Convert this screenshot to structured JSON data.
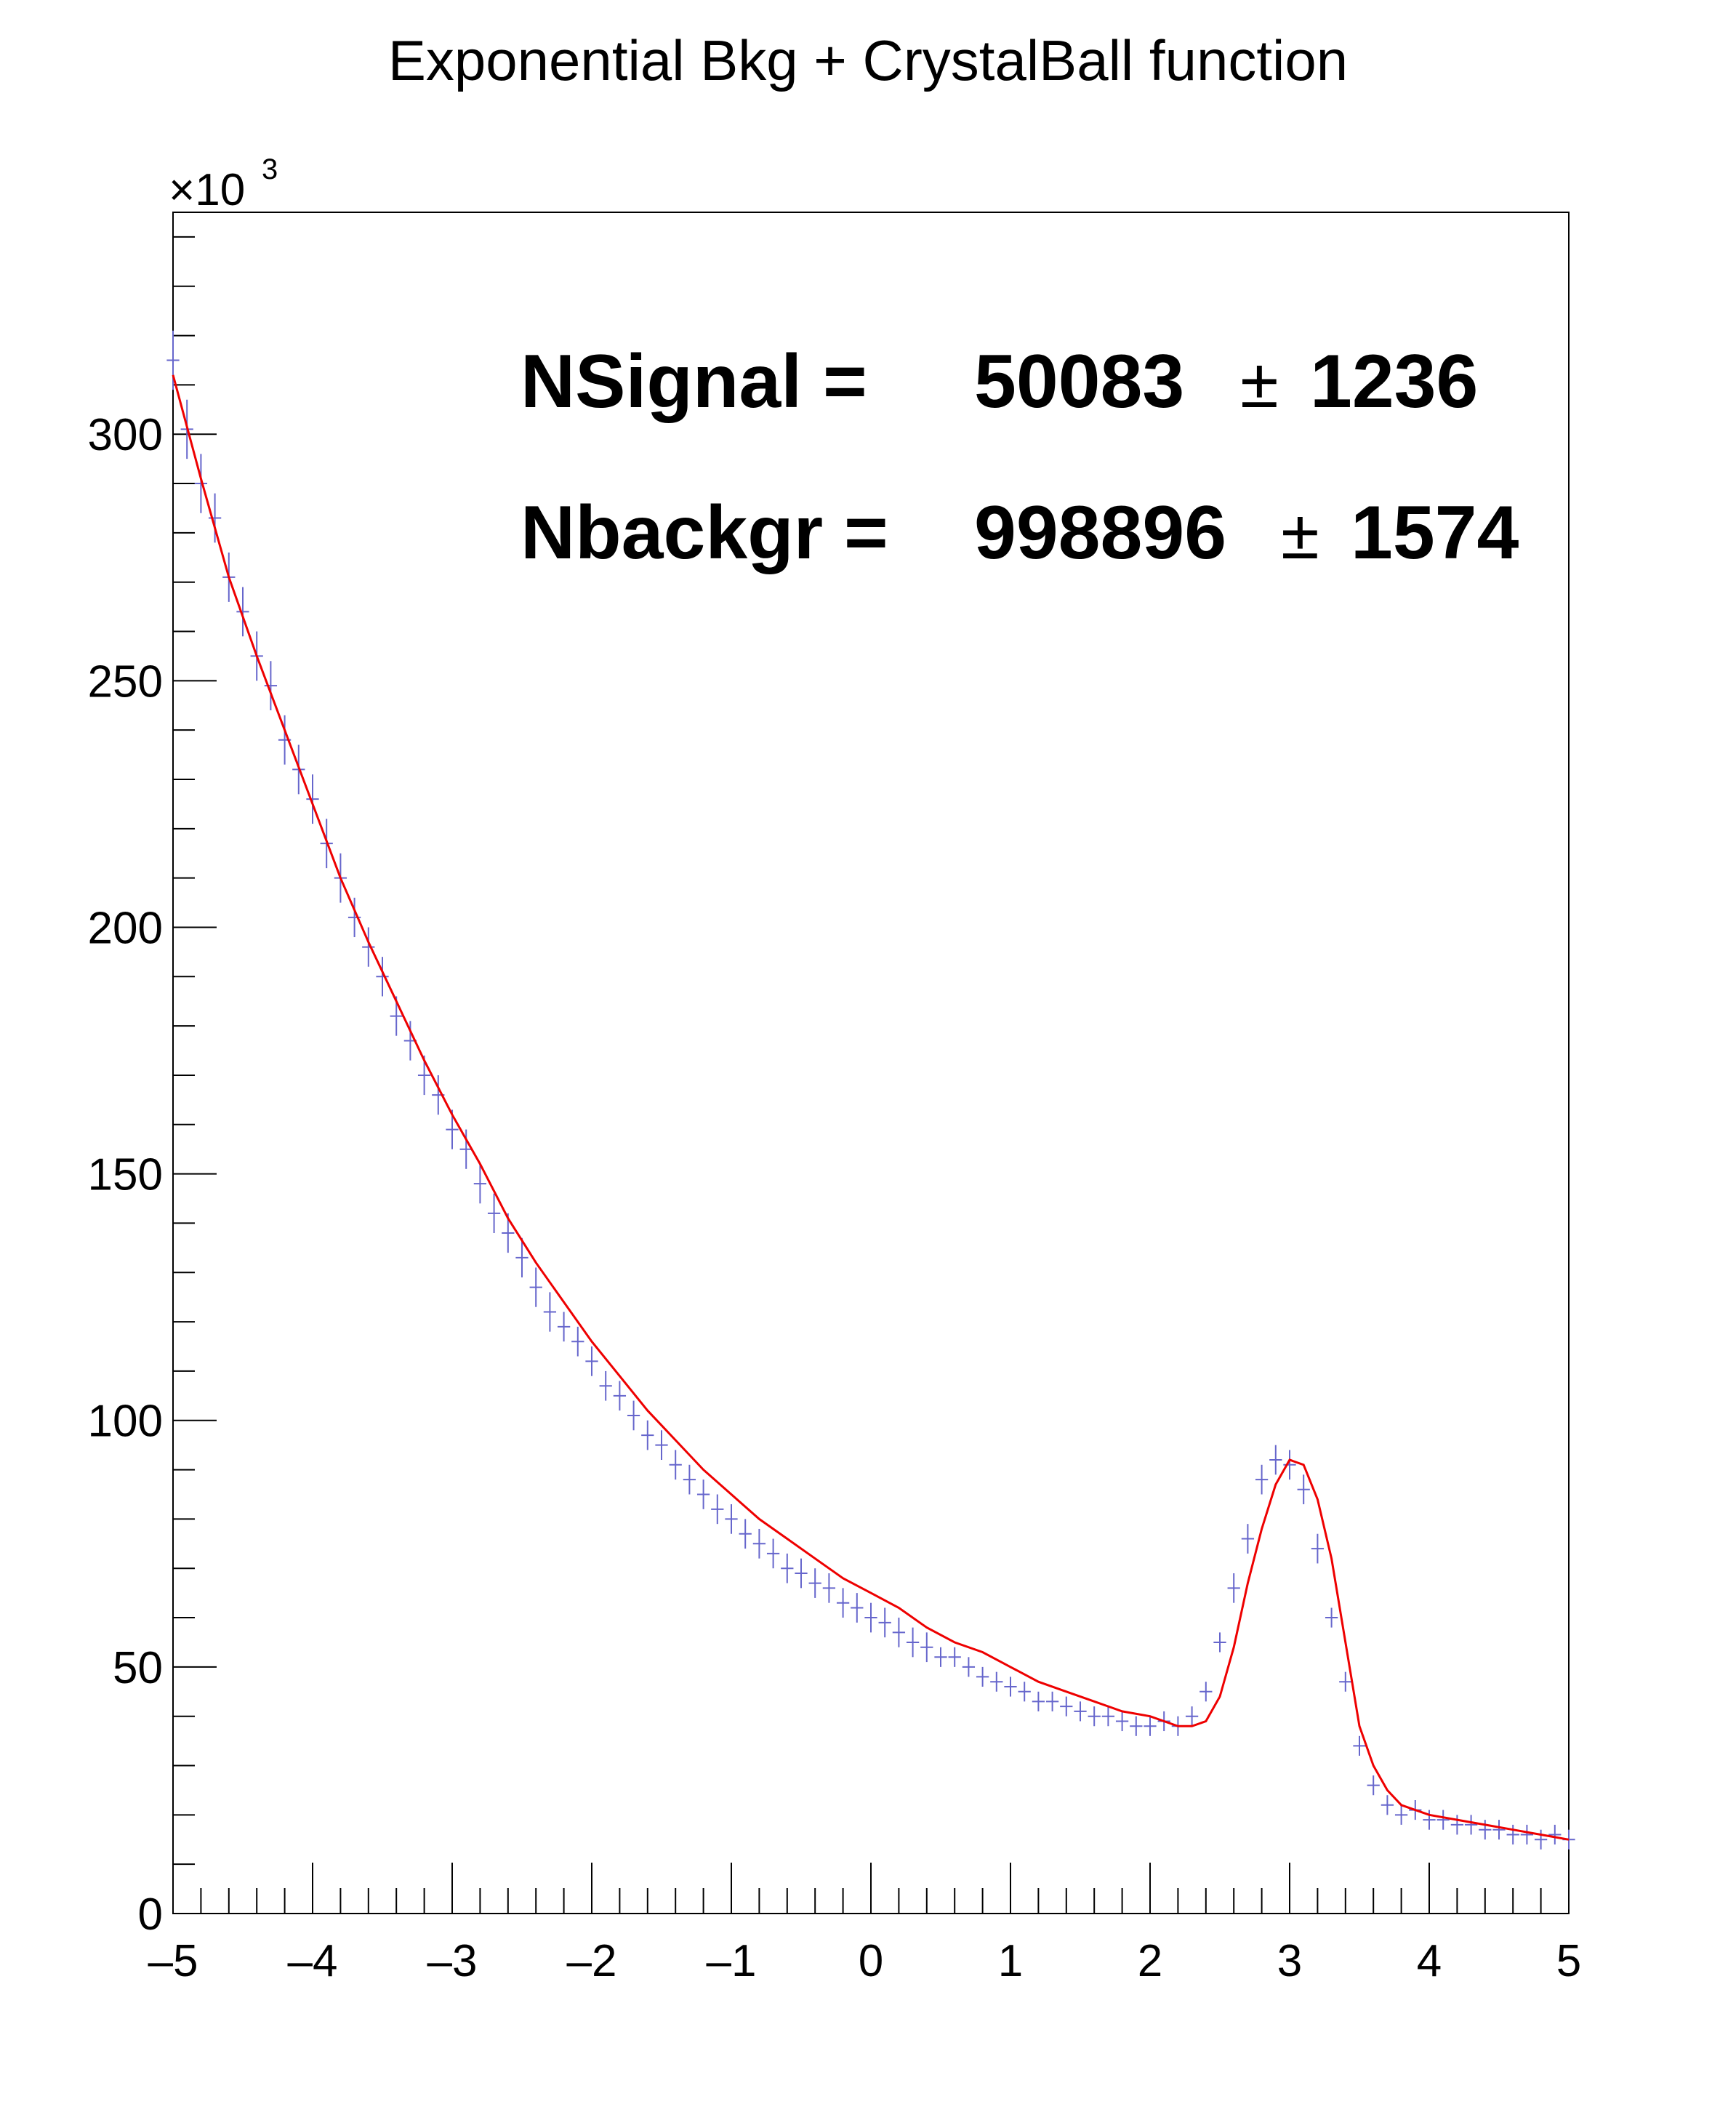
{
  "chart_data": {
    "type": "line",
    "title": "Exponential Bkg + CrystalBall function",
    "y_multiplier_base": "×10",
    "y_multiplier_exp": "3",
    "xlim": [
      -5,
      5
    ],
    "ylim": [
      0,
      345
    ],
    "grid": false,
    "x_ticks": [
      {
        "value": -5,
        "label": "–5"
      },
      {
        "value": -4,
        "label": "–4"
      },
      {
        "value": -3,
        "label": "–3"
      },
      {
        "value": -2,
        "label": "–2"
      },
      {
        "value": -1,
        "label": "–1"
      },
      {
        "value": 0,
        "label": "0"
      },
      {
        "value": 1,
        "label": "1"
      },
      {
        "value": 2,
        "label": "2"
      },
      {
        "value": 3,
        "label": "3"
      },
      {
        "value": 4,
        "label": "4"
      },
      {
        "value": 5,
        "label": "5"
      }
    ],
    "y_ticks": [
      {
        "value": 0,
        "label": "0"
      },
      {
        "value": 50,
        "label": "50"
      },
      {
        "value": 100,
        "label": "100"
      },
      {
        "value": 150,
        "label": "150"
      },
      {
        "value": 200,
        "label": "200"
      },
      {
        "value": 250,
        "label": "250"
      },
      {
        "value": 300,
        "label": "300"
      }
    ],
    "annotations": [
      {
        "name": "NSignal =",
        "value": "50083",
        "pm": "±",
        "error": "1236"
      },
      {
        "name": "Nbackgr =",
        "value": "998896",
        "pm": "±",
        "error": "1574"
      }
    ],
    "series": [
      {
        "kind": "histogram",
        "color": "#6666cc",
        "x": [
          -5.0,
          -4.9,
          -4.8,
          -4.7,
          -4.6,
          -4.5,
          -4.4,
          -4.3,
          -4.2,
          -4.1,
          -4.0,
          -3.9,
          -3.8,
          -3.7,
          -3.6,
          -3.5,
          -3.4,
          -3.3,
          -3.2,
          -3.1,
          -3.0,
          -2.9,
          -2.8,
          -2.7,
          -2.6,
          -2.5,
          -2.4,
          -2.3,
          -2.2,
          -2.1,
          -2.0,
          -1.9,
          -1.8,
          -1.7,
          -1.6,
          -1.5,
          -1.4,
          -1.3,
          -1.2,
          -1.1,
          -1.0,
          -0.9,
          -0.8,
          -0.7,
          -0.6,
          -0.5,
          -0.4,
          -0.3,
          -0.2,
          -0.1,
          0.0,
          0.1,
          0.2,
          0.3,
          0.4,
          0.5,
          0.6,
          0.7,
          0.8,
          0.9,
          1.0,
          1.1,
          1.2,
          1.3,
          1.4,
          1.5,
          1.6,
          1.7,
          1.8,
          1.9,
          2.0,
          2.1,
          2.2,
          2.3,
          2.4,
          2.5,
          2.6,
          2.7,
          2.8,
          2.9,
          3.0,
          3.1,
          3.2,
          3.3,
          3.4,
          3.5,
          3.6,
          3.7,
          3.8,
          3.9,
          4.0,
          4.1,
          4.2,
          4.3,
          4.4,
          4.5,
          4.6,
          4.7,
          4.8,
          4.9,
          5.0
        ],
        "values": [
          315,
          301,
          290,
          283,
          271,
          264,
          255,
          249,
          238,
          232,
          226,
          217,
          210,
          202,
          196,
          190,
          182,
          177,
          170,
          166,
          159,
          155,
          148,
          142,
          138,
          133,
          127,
          122,
          119,
          116,
          112,
          107,
          105,
          101,
          97,
          95,
          91,
          88,
          85,
          82,
          80,
          77,
          75,
          73,
          70,
          69,
          67,
          66,
          63,
          62,
          60,
          59,
          57,
          55,
          54,
          52,
          52,
          50,
          48,
          47,
          46,
          45,
          43,
          43,
          42,
          41,
          40,
          40,
          39,
          38,
          38,
          39,
          38,
          40,
          45,
          55,
          66,
          76,
          88,
          92,
          91,
          86,
          74,
          60,
          47,
          34,
          26,
          22,
          20,
          21,
          19,
          19,
          18,
          18,
          17,
          17,
          16,
          16,
          15,
          16,
          15
        ],
        "errors": [
          6,
          6,
          6,
          5,
          5,
          5,
          5,
          5,
          5,
          5,
          5,
          5,
          5,
          4,
          4,
          4,
          4,
          4,
          4,
          4,
          4,
          4,
          4,
          4,
          4,
          4,
          4,
          4,
          3,
          3,
          3,
          3,
          3,
          3,
          3,
          3,
          3,
          3,
          3,
          3,
          3,
          3,
          3,
          3,
          3,
          3,
          3,
          3,
          3,
          3,
          3,
          3,
          3,
          3,
          3,
          2,
          2,
          2,
          2,
          2,
          2,
          2,
          2,
          2,
          2,
          2,
          2,
          2,
          2,
          2,
          2,
          2,
          2,
          2,
          2,
          2,
          3,
          3,
          3,
          3,
          3,
          3,
          3,
          2,
          2,
          2,
          2,
          2,
          2,
          2,
          2,
          2,
          2,
          2,
          2,
          2,
          2,
          2,
          2,
          2,
          2
        ]
      },
      {
        "kind": "fit",
        "color": "#ee0000",
        "x": [
          -5.0,
          -4.8,
          -4.6,
          -4.4,
          -4.2,
          -4.0,
          -3.8,
          -3.6,
          -3.4,
          -3.2,
          -3.0,
          -2.8,
          -2.6,
          -2.4,
          -2.2,
          -2.0,
          -1.8,
          -1.6,
          -1.4,
          -1.2,
          -1.0,
          -0.8,
          -0.6,
          -0.4,
          -0.2,
          0.0,
          0.2,
          0.4,
          0.6,
          0.8,
          1.0,
          1.2,
          1.4,
          1.6,
          1.8,
          2.0,
          2.2,
          2.3,
          2.4,
          2.5,
          2.6,
          2.7,
          2.8,
          2.9,
          3.0,
          3.1,
          3.2,
          3.3,
          3.4,
          3.5,
          3.6,
          3.7,
          3.8,
          3.9,
          4.0,
          4.2,
          4.4,
          4.6,
          4.8,
          5.0
        ],
        "values": [
          312,
          291,
          271,
          255,
          240,
          225,
          210,
          197,
          185,
          173,
          162,
          152,
          141,
          132,
          124,
          116,
          109,
          102,
          96,
          90,
          85,
          80,
          76,
          72,
          68,
          65,
          62,
          58,
          55,
          53,
          50,
          47,
          45,
          43,
          41,
          40,
          38,
          38,
          39,
          44,
          54,
          67,
          78,
          87,
          92,
          91,
          84,
          72,
          55,
          38,
          30,
          25,
          22,
          21,
          20,
          19,
          18,
          17,
          16,
          15
        ]
      }
    ]
  }
}
